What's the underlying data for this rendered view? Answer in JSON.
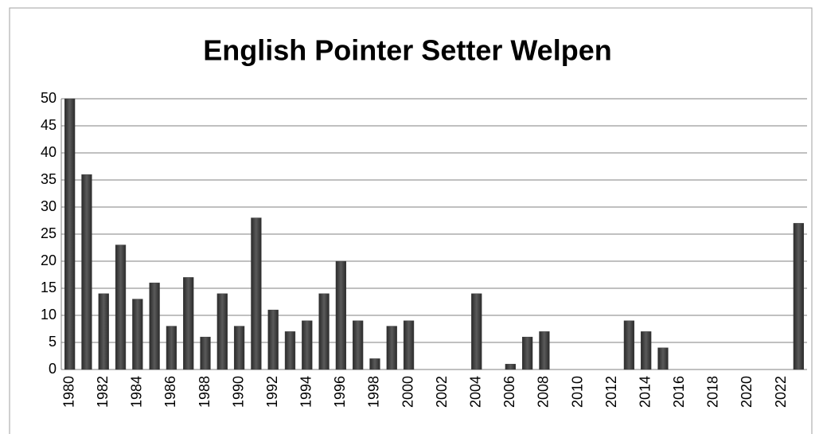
{
  "chart_data": {
    "type": "bar",
    "title": "English Pointer Setter Welpen",
    "categories": [
      "1980",
      null,
      "1982",
      null,
      "1984",
      null,
      "1986",
      null,
      "1988",
      null,
      "1990",
      null,
      "1992",
      null,
      "1994",
      null,
      "1996",
      null,
      "1998",
      null,
      "2000",
      null,
      "2002",
      null,
      "2004",
      null,
      "2006",
      null,
      "2008",
      null,
      "2010",
      null,
      "2012",
      null,
      "2014",
      null,
      "2016",
      null,
      "2018",
      null,
      "2020",
      null,
      "2022",
      null
    ],
    "values": [
      50,
      36,
      14,
      23,
      13,
      16,
      8,
      17,
      6,
      14,
      8,
      28,
      11,
      7,
      9,
      14,
      20,
      9,
      2,
      8,
      9,
      0,
      0,
      0,
      14,
      0,
      1,
      6,
      7,
      0,
      0,
      0,
      0,
      9,
      7,
      4,
      0,
      0,
      0,
      0,
      0,
      0,
      0,
      27
    ],
    "color": "#404040",
    "ylim": [
      0,
      50
    ],
    "yticks": [
      0,
      5,
      10,
      15,
      20,
      25,
      30,
      35,
      40,
      45,
      50
    ],
    "grid": true
  }
}
